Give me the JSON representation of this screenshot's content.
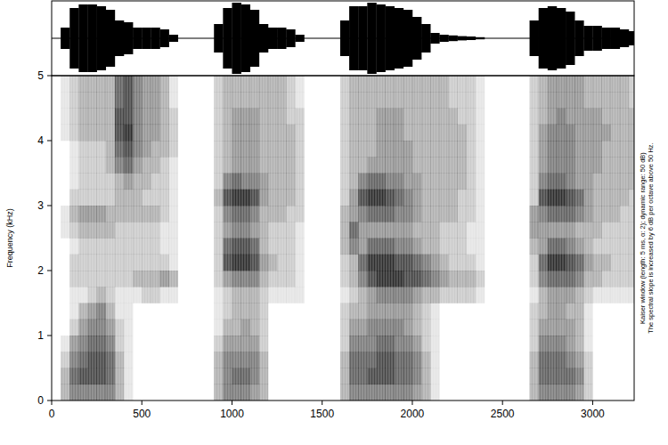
{
  "chart_data": {
    "type": "spectrogram",
    "y_label": "Frequency (kHz)",
    "annotations": [
      "Kaiser window (length: 5 ms, α: 2); dynamic range: 50 dB)",
      "The spectral slope is increased by 6 dB per octave above 50 Hz."
    ],
    "xlim": [
      0,
      3230
    ],
    "xticks": [
      0,
      500,
      1000,
      1500,
      2000,
      2500,
      3000
    ],
    "ylim": [
      0,
      5
    ],
    "yticks": [
      0,
      1,
      2,
      3,
      4,
      5
    ],
    "zlim": [
      0,
      9
    ],
    "color": "#000000",
    "x_bins": [
      0,
      50,
      100,
      150,
      200,
      250,
      300,
      350,
      400,
      450,
      500,
      550,
      600,
      650,
      700,
      750,
      800,
      850,
      900,
      950,
      1000,
      1050,
      1100,
      1150,
      1200,
      1250,
      1300,
      1350,
      1400,
      1450,
      1500,
      1550,
      1600,
      1650,
      1700,
      1750,
      1800,
      1850,
      1900,
      1950,
      2000,
      2050,
      2100,
      2150,
      2200,
      2250,
      2300,
      2350,
      2400,
      2450,
      2500,
      2550,
      2600,
      2650,
      2700,
      2750,
      2800,
      2850,
      2900,
      2950,
      3000,
      3050,
      3100,
      3150,
      3200,
      3230
    ],
    "y_bins": [
      0,
      0.25,
      0.5,
      0.75,
      1,
      1.25,
      1.5,
      1.75,
      2,
      2.25,
      2.5,
      2.75,
      3,
      3.25,
      3.5,
      3.75,
      4,
      4.25,
      4.5,
      4.75,
      5
    ],
    "cells": [
      [
        0,
        0,
        0,
        0,
        0,
        0,
        0,
        0,
        0,
        0,
        0,
        0,
        0,
        0,
        0,
        0,
        0,
        0,
        0,
        0
      ],
      [
        3,
        3,
        2,
        1,
        0,
        0,
        0,
        0,
        0,
        0,
        1,
        1,
        0,
        0,
        0,
        0,
        1,
        1,
        1,
        1
      ],
      [
        5,
        6,
        5,
        4,
        2,
        1,
        1,
        2,
        2,
        1,
        2,
        3,
        2,
        1,
        1,
        1,
        2,
        2,
        2,
        2
      ],
      [
        5,
        7,
        6,
        5,
        4,
        3,
        1,
        2,
        2,
        2,
        3,
        4,
        2,
        2,
        2,
        2,
        3,
        3,
        3,
        3
      ],
      [
        5,
        7,
        7,
        6,
        5,
        4,
        2,
        2,
        2,
        2,
        3,
        4,
        2,
        2,
        2,
        2,
        3,
        3,
        3,
        3
      ],
      [
        5,
        7,
        7,
        6,
        5,
        5,
        3,
        2,
        2,
        2,
        3,
        4,
        2,
        2,
        2,
        2,
        3,
        3,
        3,
        3
      ],
      [
        5,
        6,
        6,
        5,
        4,
        3,
        2,
        2,
        2,
        2,
        3,
        3,
        2,
        2,
        3,
        3,
        3,
        3,
        3,
        3
      ],
      [
        3,
        3,
        3,
        2,
        2,
        1,
        1,
        2,
        2,
        2,
        2,
        3,
        3,
        3,
        5,
        6,
        7,
        7,
        6,
        6
      ],
      [
        1,
        1,
        1,
        1,
        1,
        1,
        1,
        2,
        2,
        2,
        2,
        3,
        3,
        4,
        6,
        7,
        8,
        7,
        7,
        7
      ],
      [
        0,
        0,
        0,
        0,
        0,
        0,
        1,
        3,
        2,
        2,
        2,
        3,
        3,
        3,
        4,
        5,
        5,
        5,
        5,
        5
      ],
      [
        0,
        0,
        0,
        0,
        0,
        0,
        2,
        3,
        2,
        2,
        2,
        3,
        2,
        3,
        3,
        4,
        4,
        4,
        4,
        4
      ],
      [
        0,
        0,
        0,
        0,
        0,
        0,
        2,
        3,
        2,
        2,
        2,
        3,
        2,
        2,
        3,
        3,
        4,
        4,
        4,
        4
      ],
      [
        0,
        0,
        0,
        0,
        0,
        0,
        1,
        4,
        2,
        1,
        1,
        2,
        2,
        2,
        2,
        3,
        3,
        3,
        3,
        3
      ],
      [
        0,
        0,
        0,
        0,
        0,
        0,
        1,
        3,
        1,
        1,
        1,
        1,
        1,
        1,
        1,
        2,
        2,
        2,
        1,
        1
      ],
      [
        0,
        0,
        0,
        0,
        0,
        0,
        0,
        0,
        0,
        0,
        0,
        0,
        0,
        0,
        0,
        0,
        0,
        0,
        0,
        0
      ],
      [
        0,
        0,
        0,
        0,
        0,
        0,
        0,
        0,
        0,
        0,
        0,
        0,
        0,
        0,
        0,
        0,
        0,
        0,
        0,
        0
      ],
      [
        0,
        0,
        0,
        0,
        0,
        0,
        0,
        0,
        0,
        0,
        0,
        0,
        0,
        0,
        0,
        0,
        0,
        0,
        0,
        0
      ],
      [
        0,
        0,
        0,
        0,
        0,
        0,
        0,
        0,
        0,
        0,
        0,
        0,
        0,
        0,
        0,
        0,
        0,
        0,
        0,
        0
      ],
      [
        3,
        3,
        3,
        2,
        1,
        1,
        1,
        2,
        2,
        2,
        2,
        2,
        3,
        2,
        2,
        2,
        2,
        2,
        2,
        2
      ],
      [
        5,
        5,
        5,
        4,
        3,
        2,
        2,
        4,
        7,
        6,
        4,
        5,
        7,
        5,
        3,
        3,
        3,
        3,
        3,
        3
      ],
      [
        5,
        6,
        5,
        4,
        3,
        3,
        3,
        5,
        8,
        7,
        5,
        6,
        8,
        6,
        4,
        4,
        4,
        4,
        3,
        3
      ],
      [
        5,
        6,
        5,
        4,
        4,
        3,
        3,
        5,
        8,
        7,
        5,
        6,
        8,
        5,
        4,
        4,
        4,
        4,
        3,
        3
      ],
      [
        4,
        5,
        5,
        4,
        3,
        3,
        3,
        5,
        7,
        6,
        4,
        5,
        7,
        5,
        4,
        4,
        4,
        4,
        3,
        3
      ],
      [
        3,
        3,
        3,
        2,
        2,
        2,
        2,
        3,
        4,
        3,
        3,
        3,
        4,
        4,
        3,
        3,
        3,
        3,
        3,
        3
      ],
      [
        0,
        0,
        0,
        0,
        0,
        0,
        1,
        2,
        3,
        2,
        2,
        3,
        3,
        3,
        3,
        3,
        3,
        3,
        3,
        3
      ],
      [
        0,
        0,
        0,
        0,
        0,
        0,
        1,
        2,
        2,
        2,
        2,
        3,
        3,
        3,
        3,
        3,
        3,
        3,
        3,
        3
      ],
      [
        0,
        0,
        0,
        0,
        0,
        0,
        1,
        2,
        2,
        2,
        2,
        2,
        3,
        3,
        3,
        3,
        3,
        2,
        2,
        2
      ],
      [
        0,
        0,
        0,
        0,
        0,
        0,
        1,
        1,
        1,
        1,
        1,
        2,
        2,
        2,
        2,
        2,
        2,
        2,
        1,
        1
      ],
      [
        0,
        0,
        0,
        0,
        0,
        0,
        0,
        0,
        0,
        0,
        0,
        0,
        0,
        0,
        0,
        0,
        0,
        0,
        0,
        0
      ],
      [
        0,
        0,
        0,
        0,
        0,
        0,
        0,
        0,
        0,
        0,
        0,
        0,
        0,
        0,
        0,
        0,
        0,
        0,
        0,
        0
      ],
      [
        0,
        0,
        0,
        0,
        0,
        0,
        0,
        0,
        0,
        0,
        0,
        0,
        0,
        0,
        0,
        0,
        0,
        0,
        0,
        0
      ],
      [
        0,
        0,
        0,
        0,
        0,
        0,
        0,
        0,
        0,
        0,
        0,
        0,
        0,
        0,
        0,
        0,
        0,
        0,
        0,
        0
      ],
      [
        3,
        3,
        3,
        2,
        2,
        2,
        1,
        2,
        2,
        3,
        3,
        3,
        2,
        2,
        2,
        2,
        2,
        2,
        2,
        2
      ],
      [
        5,
        6,
        6,
        5,
        4,
        3,
        2,
        3,
        3,
        5,
        6,
        4,
        4,
        3,
        3,
        3,
        3,
        3,
        3,
        3
      ],
      [
        5,
        6,
        6,
        5,
        4,
        3,
        3,
        5,
        6,
        4,
        4,
        5,
        7,
        5,
        3,
        3,
        3,
        3,
        3,
        3
      ],
      [
        5,
        7,
        6,
        5,
        5,
        4,
        4,
        7,
        8,
        6,
        4,
        6,
        8,
        6,
        4,
        3,
        3,
        3,
        3,
        3
      ],
      [
        5,
        7,
        7,
        6,
        5,
        4,
        5,
        8,
        8,
        6,
        4,
        6,
        8,
        6,
        4,
        4,
        4,
        4,
        3,
        3
      ],
      [
        5,
        7,
        7,
        6,
        5,
        4,
        5,
        8,
        8,
        6,
        4,
        6,
        7,
        5,
        4,
        4,
        4,
        4,
        3,
        3
      ],
      [
        5,
        6,
        6,
        5,
        5,
        4,
        5,
        8,
        7,
        5,
        4,
        5,
        6,
        5,
        4,
        4,
        4,
        4,
        3,
        3
      ],
      [
        5,
        6,
        6,
        5,
        4,
        4,
        5,
        7,
        7,
        5,
        4,
        5,
        5,
        4,
        4,
        4,
        3,
        3,
        3,
        3
      ],
      [
        4,
        5,
        5,
        4,
        3,
        3,
        4,
        7,
        6,
        4,
        3,
        4,
        4,
        4,
        3,
        3,
        3,
        3,
        3,
        3
      ],
      [
        3,
        3,
        3,
        2,
        2,
        2,
        3,
        6,
        5,
        3,
        3,
        3,
        3,
        3,
        3,
        3,
        3,
        3,
        3,
        3
      ],
      [
        1,
        1,
        1,
        1,
        1,
        1,
        3,
        5,
        4,
        3,
        3,
        3,
        3,
        3,
        3,
        3,
        3,
        3,
        3,
        3
      ],
      [
        0,
        0,
        0,
        0,
        0,
        0,
        2,
        4,
        3,
        2,
        2,
        3,
        3,
        3,
        3,
        3,
        3,
        3,
        3,
        3
      ],
      [
        0,
        0,
        0,
        0,
        0,
        0,
        2,
        3,
        2,
        2,
        2,
        3,
        3,
        3,
        3,
        3,
        3,
        3,
        2,
        2
      ],
      [
        0,
        0,
        0,
        0,
        0,
        0,
        2,
        3,
        2,
        2,
        2,
        2,
        2,
        3,
        3,
        3,
        3,
        2,
        2,
        2
      ],
      [
        0,
        0,
        0,
        0,
        0,
        0,
        2,
        3,
        2,
        1,
        1,
        2,
        2,
        2,
        2,
        2,
        2,
        2,
        2,
        2
      ],
      [
        0,
        0,
        0,
        0,
        0,
        0,
        1,
        2,
        1,
        1,
        1,
        1,
        1,
        1,
        1,
        1,
        1,
        1,
        1,
        1
      ],
      [
        0,
        0,
        0,
        0,
        0,
        0,
        0,
        0,
        0,
        0,
        0,
        0,
        0,
        0,
        0,
        0,
        0,
        0,
        0,
        0
      ],
      [
        0,
        0,
        0,
        0,
        0,
        0,
        0,
        0,
        0,
        0,
        0,
        0,
        0,
        0,
        0,
        0,
        0,
        0,
        0,
        0
      ],
      [
        0,
        0,
        0,
        0,
        0,
        0,
        0,
        0,
        0,
        0,
        0,
        0,
        0,
        0,
        0,
        0,
        0,
        0,
        0,
        0
      ],
      [
        0,
        0,
        0,
        0,
        0,
        0,
        0,
        0,
        0,
        0,
        0,
        0,
        0,
        0,
        0,
        0,
        0,
        0,
        0,
        0
      ],
      [
        0,
        0,
        0,
        0,
        0,
        0,
        0,
        0,
        0,
        0,
        0,
        0,
        0,
        0,
        0,
        0,
        0,
        0,
        0,
        0
      ],
      [
        3,
        3,
        3,
        2,
        2,
        2,
        1,
        2,
        2,
        3,
        4,
        4,
        2,
        2,
        2,
        2,
        2,
        2,
        2,
        2
      ],
      [
        5,
        6,
        6,
        5,
        4,
        3,
        3,
        5,
        6,
        4,
        4,
        5,
        7,
        5,
        4,
        4,
        4,
        3,
        3,
        3
      ],
      [
        5,
        6,
        6,
        5,
        4,
        4,
        4,
        6,
        8,
        6,
        4,
        6,
        8,
        6,
        5,
        5,
        5,
        4,
        4,
        4
      ],
      [
        5,
        6,
        6,
        5,
        4,
        4,
        4,
        6,
        8,
        6,
        4,
        6,
        8,
        6,
        5,
        5,
        5,
        5,
        4,
        4
      ],
      [
        5,
        6,
        5,
        4,
        4,
        3,
        4,
        6,
        7,
        5,
        4,
        6,
        7,
        5,
        5,
        5,
        5,
        4,
        4,
        4
      ],
      [
        4,
        5,
        4,
        3,
        3,
        3,
        3,
        5,
        6,
        4,
        3,
        5,
        6,
        4,
        4,
        4,
        4,
        4,
        4,
        4
      ],
      [
        2,
        2,
        2,
        1,
        1,
        1,
        2,
        3,
        4,
        3,
        3,
        4,
        4,
        4,
        4,
        4,
        4,
        4,
        3,
        3
      ],
      [
        0,
        0,
        0,
        0,
        0,
        0,
        1,
        3,
        3,
        2,
        3,
        3,
        3,
        3,
        4,
        4,
        4,
        4,
        3,
        3
      ],
      [
        0,
        0,
        0,
        0,
        0,
        0,
        1,
        2,
        3,
        2,
        2,
        3,
        3,
        3,
        3,
        3,
        4,
        3,
        3,
        3
      ],
      [
        0,
        0,
        0,
        0,
        0,
        0,
        1,
        2,
        2,
        2,
        2,
        3,
        3,
        3,
        3,
        3,
        3,
        3,
        3,
        3
      ],
      [
        0,
        0,
        0,
        0,
        0,
        0,
        1,
        2,
        2,
        2,
        2,
        2,
        3,
        3,
        3,
        3,
        3,
        3,
        3,
        3
      ],
      [
        0,
        0,
        0,
        0,
        0,
        0,
        1,
        2,
        2,
        2,
        2,
        2,
        2,
        3,
        3,
        3,
        3,
        3,
        2,
        2
      ]
    ],
    "waveform": [
      0,
      0.3,
      0.85,
      0.95,
      0.95,
      0.9,
      0.8,
      0.5,
      0.45,
      0.3,
      0.3,
      0.3,
      0.25,
      0.1,
      0,
      0,
      0,
      0,
      0.4,
      0.85,
      1.0,
      0.95,
      0.8,
      0.4,
      0.3,
      0.3,
      0.25,
      0.1,
      0,
      0,
      0,
      0,
      0.5,
      0.9,
      0.9,
      1.0,
      0.95,
      0.9,
      0.85,
      0.8,
      0.6,
      0.4,
      0.15,
      0.1,
      0.08,
      0.06,
      0.05,
      0.03,
      0,
      0,
      0,
      0,
      0,
      0.5,
      0.85,
      0.9,
      0.85,
      0.75,
      0.5,
      0.35,
      0.35,
      0.3,
      0.3,
      0.25,
      0.2
    ]
  }
}
